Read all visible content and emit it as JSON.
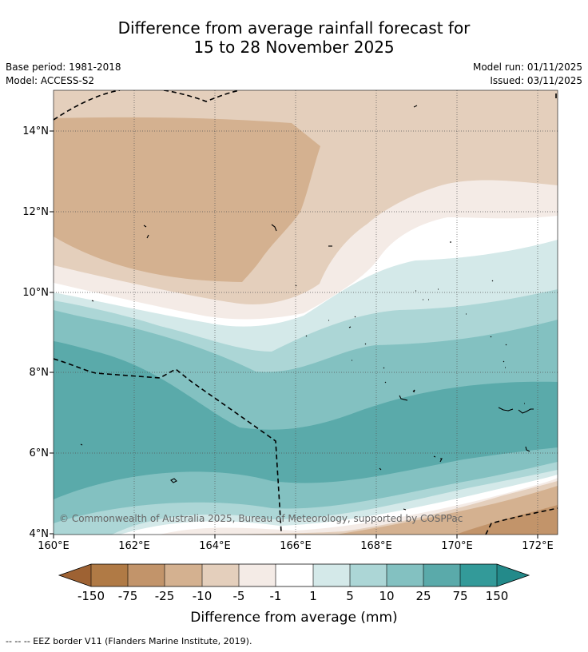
{
  "title": {
    "line1": "Difference from average rainfall forecast for",
    "line2": "15 to 28 November 2025"
  },
  "meta": {
    "base_period": "Base period: 1981-2018",
    "model": "Model: ACCESS-S2",
    "model_run": "Model run: 01/11/2025",
    "issued": "Issued: 03/11/2025"
  },
  "map": {
    "lat_labels": [
      "14°N",
      "12°N",
      "10°N",
      "8°N",
      "6°N",
      "4°N"
    ],
    "lon_labels": [
      "160°E",
      "162°E",
      "164°E",
      "166°E",
      "168°E",
      "170°E",
      "172°E"
    ],
    "copyright": "© Commonwealth of Australia 2025, Bureau of Meteorology, supported by COSPPac"
  },
  "colorbar": {
    "labels": [
      "-150",
      "-75",
      "-25",
      "-10",
      "-5",
      "-1",
      "1",
      "5",
      "10",
      "25",
      "75",
      "150"
    ],
    "colors": {
      "lt_-150": "#9e6233",
      "-150_-75": "#b07a45",
      "-75_-25": "#c2946a",
      "-25_-10": "#d4b190",
      "-10_-5": "#e4cfbc",
      "-5_-1": "#f4ebe6",
      "-1_1": "#ffffff",
      "1_5": "#d4e9e9",
      "5_10": "#acd6d6",
      "10_25": "#83c1c1",
      "25_75": "#5aaaaa",
      "75_150": "#339a99",
      "gt_150": "#238a8a"
    },
    "title": "Difference from average (mm)"
  },
  "footnote": "--  --  -- EEZ border V11 (Flanders Marine Institute, 2019)."
}
